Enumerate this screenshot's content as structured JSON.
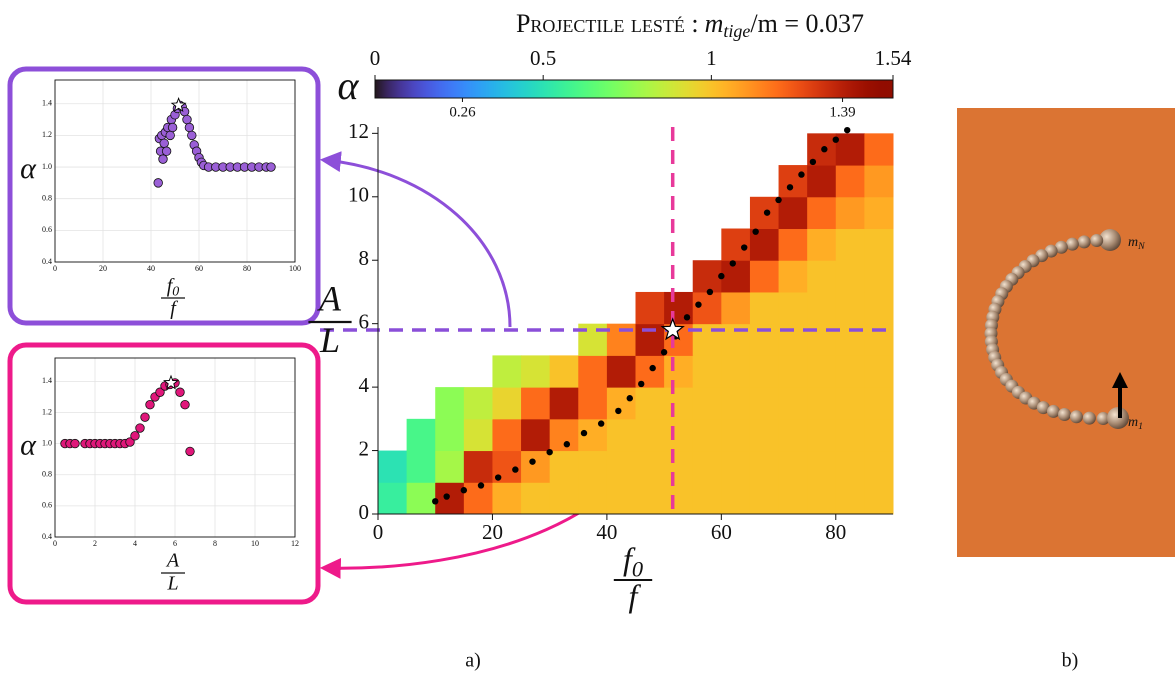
{
  "figure": {
    "panel_a": "a)",
    "panel_b": "b)",
    "mass_top": {
      "symbol": "m",
      "subscript": "N"
    },
    "mass_bottom": {
      "symbol": "m",
      "subscript": "1"
    }
  },
  "chart_data": [
    {
      "type": "heatmap",
      "title": "Projectile lesté :",
      "title_formula": {
        "symbol": "m",
        "subscript": "tige",
        "rest": "/m = 0.037"
      },
      "xlabel": {
        "numerator": {
          "symbol": "f",
          "subscript": "0"
        },
        "denominator": "f"
      },
      "ylabel": {
        "numerator": "A",
        "denominator": "L"
      },
      "colorbar": {
        "label": "α",
        "lim": [
          0,
          1.54
        ],
        "ticks": [
          0,
          0.5,
          1,
          1.54
        ],
        "extremes": [
          0.26,
          1.39
        ]
      },
      "xlim": [
        0,
        90
      ],
      "ylim": [
        0,
        12.2
      ],
      "xticks": [
        0,
        20,
        40,
        60,
        80
      ],
      "yticks": [
        0,
        2,
        4,
        6,
        8,
        10,
        12
      ],
      "x": [
        2.5,
        7.5,
        12.5,
        17.5,
        22.5,
        27.5,
        32.5,
        37.5,
        42.5,
        47.5,
        52.5,
        57.5,
        62.5,
        67.5,
        72.5,
        77.5,
        82.5,
        87.5
      ],
      "y": [
        0.5,
        1.5,
        2.5,
        3.5,
        4.5,
        5.5,
        6.5,
        7.5,
        8.5,
        9.5,
        10.5,
        11.5
      ],
      "values": [
        [
          0.55,
          0.75,
          1.4,
          1.2,
          1.05,
          1,
          1,
          1,
          1,
          1,
          1,
          1,
          1,
          1,
          1,
          1,
          1,
          1
        ],
        [
          0.5,
          0.6,
          0.8,
          1.35,
          1.25,
          1.1,
          1,
          1,
          1,
          1,
          1,
          1,
          1,
          1,
          1,
          1,
          1,
          1
        ],
        [
          null,
          0.6,
          0.75,
          0.9,
          1.2,
          1.4,
          1.15,
          1.05,
          1,
          1,
          1,
          1,
          1,
          1,
          1,
          1,
          1,
          1
        ],
        [
          null,
          null,
          0.75,
          0.85,
          0.95,
          1.2,
          1.4,
          1.2,
          1.05,
          1,
          1,
          1,
          1,
          1,
          1,
          1,
          1,
          1
        ],
        [
          null,
          null,
          null,
          null,
          0.85,
          0.9,
          1.0,
          1.2,
          1.4,
          1.2,
          1.05,
          1,
          1,
          1,
          1,
          1,
          1,
          1
        ],
        [
          null,
          null,
          null,
          null,
          null,
          null,
          null,
          0.9,
          1.15,
          1.4,
          1.2,
          1,
          1,
          1,
          1,
          1,
          1,
          1
        ],
        [
          null,
          null,
          null,
          null,
          null,
          null,
          null,
          null,
          null,
          1.3,
          1.4,
          1.25,
          1.1,
          1,
          1,
          1,
          1,
          1
        ],
        [
          null,
          null,
          null,
          null,
          null,
          null,
          null,
          null,
          null,
          null,
          null,
          1.35,
          1.4,
          1.2,
          1.05,
          1,
          1,
          1
        ],
        [
          null,
          null,
          null,
          null,
          null,
          null,
          null,
          null,
          null,
          null,
          null,
          null,
          1.3,
          1.4,
          1.2,
          1.05,
          1,
          1
        ],
        [
          null,
          null,
          null,
          null,
          null,
          null,
          null,
          null,
          null,
          null,
          null,
          null,
          null,
          1.3,
          1.4,
          1.2,
          1.1,
          1.05
        ],
        [
          null,
          null,
          null,
          null,
          null,
          null,
          null,
          null,
          null,
          null,
          null,
          null,
          null,
          null,
          1.3,
          1.4,
          1.2,
          1.1
        ],
        [
          null,
          null,
          null,
          null,
          null,
          null,
          null,
          null,
          null,
          null,
          null,
          null,
          null,
          null,
          null,
          1.35,
          1.4,
          1.2
        ]
      ],
      "ridge": {
        "color": "#000000",
        "x": [
          10,
          12,
          15,
          18,
          21,
          24,
          27,
          30,
          33,
          36,
          39,
          42,
          44,
          46,
          48,
          50,
          52,
          54,
          56,
          58,
          60,
          62,
          64,
          66,
          68,
          70,
          72,
          74,
          76,
          78,
          80,
          82
        ],
        "y": [
          0.4,
          0.55,
          0.75,
          0.9,
          1.15,
          1.4,
          1.65,
          1.95,
          2.2,
          2.55,
          2.85,
          3.25,
          3.65,
          4.1,
          4.6,
          5.1,
          5.6,
          6.2,
          6.6,
          7.0,
          7.5,
          7.9,
          8.4,
          8.9,
          9.5,
          9.9,
          10.3,
          10.7,
          11.1,
          11.5,
          11.8,
          12.1
        ]
      },
      "selected": {
        "x": 51.5,
        "y": 5.8
      },
      "x_cut_color": "#e8399a",
      "y_cut_color": "#8a4fd8"
    },
    {
      "type": "scatter",
      "ylabel": "α",
      "xlabel": {
        "numerator": {
          "symbol": "f",
          "subscript": "0"
        },
        "denominator": "f"
      },
      "xlim": [
        0,
        100
      ],
      "ylim": [
        0.4,
        1.55
      ],
      "xticks": [
        0,
        20,
        40,
        60,
        80,
        100
      ],
      "yticks": [
        0.4,
        0.6,
        0.8,
        {
          "value": 1,
          "label": "1.0"
        },
        1.2,
        1.4
      ],
      "grid": true,
      "series": [
        {
          "color": "#9a5fd6",
          "x": [
            43,
            43.5,
            44,
            44.5,
            45,
            45.5,
            46,
            46.5,
            47,
            48,
            48.5,
            49,
            50,
            51,
            52,
            53,
            54,
            55,
            56,
            57,
            58,
            59,
            60,
            61,
            62,
            64,
            67,
            70,
            73,
            76,
            79,
            82,
            85,
            88,
            90
          ],
          "y": [
            0.9,
            1.18,
            1.1,
            1.2,
            1.05,
            1.15,
            1.22,
            1.1,
            1.25,
            1.2,
            1.3,
            1.25,
            1.33,
            1.37,
            1.39,
            1.38,
            1.35,
            1.3,
            1.25,
            1.2,
            1.14,
            1.1,
            1.06,
            1.03,
            1.01,
            1,
            1,
            1,
            1,
            1,
            1,
            1,
            1,
            1,
            1
          ]
        }
      ],
      "selected": {
        "x": 51.5,
        "y": 1.39
      }
    },
    {
      "type": "scatter",
      "ylabel": "α",
      "xlabel": {
        "numerator": "A",
        "denominator": "L"
      },
      "xlim": [
        0,
        12
      ],
      "ylim": [
        0.4,
        1.55
      ],
      "xticks": [
        0,
        2,
        4,
        6,
        8,
        10,
        12
      ],
      "yticks": [
        0.4,
        0.6,
        0.8,
        {
          "value": 1,
          "label": "1.0"
        },
        1.2,
        1.4
      ],
      "grid": true,
      "series": [
        {
          "color": "#e0177a",
          "x": [
            0.5,
            0.75,
            1,
            1.5,
            1.75,
            2,
            2.25,
            2.5,
            2.75,
            3,
            3.25,
            3.5,
            3.75,
            4,
            4.25,
            4.5,
            4.75,
            5,
            5.25,
            5.5,
            5.75,
            6,
            6.25,
            6.5,
            6.75
          ],
          "y": [
            1,
            1,
            1,
            1,
            1,
            1,
            1,
            1,
            1,
            1,
            1,
            1,
            1.01,
            1.05,
            1.1,
            1.17,
            1.25,
            1.3,
            1.33,
            1.37,
            1.38,
            1.39,
            1.33,
            1.25,
            0.95
          ]
        }
      ],
      "selected": {
        "x": 5.8,
        "y": 1.39
      }
    }
  ]
}
